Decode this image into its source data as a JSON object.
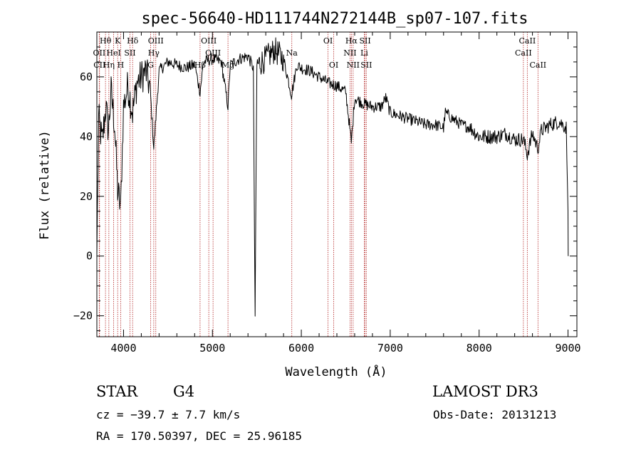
{
  "chart_data": {
    "type": "line",
    "title": "spec-56640-HD111744N272144B_sp07-107.fits",
    "xlabel": "Wavelength (Å)",
    "ylabel": "Flux (relative)",
    "xlim": [
      3700,
      9100
    ],
    "ylim": [
      -27,
      75
    ],
    "xticks": [
      4000,
      5000,
      6000,
      7000,
      8000,
      9000
    ],
    "yticks": [
      -20,
      0,
      20,
      40,
      60
    ],
    "spectrum_control_points": [
      [
        3700,
        0
      ],
      [
        3720,
        46
      ],
      [
        3760,
        38
      ],
      [
        3800,
        50
      ],
      [
        3830,
        42
      ],
      [
        3860,
        55
      ],
      [
        3900,
        44
      ],
      [
        3934,
        22
      ],
      [
        3968,
        16
      ],
      [
        4000,
        50
      ],
      [
        4050,
        57
      ],
      [
        4102,
        48
      ],
      [
        4150,
        58
      ],
      [
        4200,
        60
      ],
      [
        4250,
        62
      ],
      [
        4300,
        56
      ],
      [
        4340,
        36
      ],
      [
        4400,
        62
      ],
      [
        4500,
        65
      ],
      [
        4600,
        64
      ],
      [
        4700,
        63
      ],
      [
        4800,
        64
      ],
      [
        4861,
        55
      ],
      [
        4900,
        65
      ],
      [
        5000,
        66
      ],
      [
        5100,
        65
      ],
      [
        5175,
        50
      ],
      [
        5200,
        64
      ],
      [
        5300,
        66
      ],
      [
        5400,
        67
      ],
      [
        5460,
        63
      ],
      [
        5480,
        -20
      ],
      [
        5500,
        64
      ],
      [
        5600,
        66
      ],
      [
        5700,
        69
      ],
      [
        5800,
        66
      ],
      [
        5890,
        54
      ],
      [
        5950,
        64
      ],
      [
        6000,
        63
      ],
      [
        6100,
        62
      ],
      [
        6200,
        60
      ],
      [
        6300,
        58
      ],
      [
        6400,
        57
      ],
      [
        6500,
        55
      ],
      [
        6563,
        38
      ],
      [
        6600,
        53
      ],
      [
        6700,
        51
      ],
      [
        6800,
        50
      ],
      [
        6900,
        50
      ],
      [
        6950,
        53
      ],
      [
        7000,
        48
      ],
      [
        7100,
        47
      ],
      [
        7200,
        46
      ],
      [
        7300,
        45
      ],
      [
        7400,
        44
      ],
      [
        7500,
        44
      ],
      [
        7600,
        43
      ],
      [
        7620,
        48
      ],
      [
        7700,
        46
      ],
      [
        7800,
        44
      ],
      [
        7900,
        43
      ],
      [
        8000,
        40
      ],
      [
        8100,
        40
      ],
      [
        8200,
        40
      ],
      [
        8300,
        41
      ],
      [
        8400,
        39
      ],
      [
        8500,
        39
      ],
      [
        8542,
        34
      ],
      [
        8600,
        41
      ],
      [
        8662,
        36
      ],
      [
        8700,
        42
      ],
      [
        8800,
        44
      ],
      [
        8900,
        45
      ],
      [
        8980,
        43
      ],
      [
        9000,
        15
      ],
      [
        9002,
        0
      ]
    ],
    "lines": [
      {
        "name": "Hθ",
        "wavelength": 3797,
        "row": 1
      },
      {
        "name": "OII",
        "wavelength": 3727,
        "row": 2
      },
      {
        "name": "CII",
        "wavelength": 3730,
        "row": 3
      },
      {
        "name": "Hη",
        "wavelength": 3835,
        "row": 3
      },
      {
        "name": "K",
        "wavelength": 3934,
        "row": 1
      },
      {
        "name": "HeI",
        "wavelength": 3889,
        "row": 2
      },
      {
        "name": "H",
        "wavelength": 3968,
        "row": 3
      },
      {
        "name": "Hδ",
        "wavelength": 4102,
        "row": 1
      },
      {
        "name": "SII",
        "wavelength": 4072,
        "row": 2
      },
      {
        "name": "OIII",
        "wavelength": 4363,
        "row": 1
      },
      {
        "name": "Hγ",
        "wavelength": 4340,
        "row": 2
      },
      {
        "name": "G",
        "wavelength": 4305,
        "row": 3
      },
      {
        "name": "OIII",
        "wavelength": 4959,
        "row": 1
      },
      {
        "name": "OIII",
        "wavelength": 5007,
        "row": 2
      },
      {
        "name": "Hβ",
        "wavelength": 4861,
        "row": 3
      },
      {
        "name": "Mg",
        "wavelength": 5175,
        "row": 3
      },
      {
        "name": "Na",
        "wavelength": 5893,
        "row": 2
      },
      {
        "name": "OI",
        "wavelength": 6300,
        "row": 1
      },
      {
        "name": "OI",
        "wavelength": 6364,
        "row": 3
      },
      {
        "name": "Hα",
        "wavelength": 6563,
        "row": 1
      },
      {
        "name": "NII",
        "wavelength": 6548,
        "row": 2
      },
      {
        "name": "NII",
        "wavelength": 6583,
        "row": 3
      },
      {
        "name": "SII",
        "wavelength": 6717,
        "row": 1
      },
      {
        "name": "Li",
        "wavelength": 6708,
        "row": 2
      },
      {
        "name": "SII",
        "wavelength": 6731,
        "row": 3
      },
      {
        "name": "CaII",
        "wavelength": 8542,
        "row": 1
      },
      {
        "name": "CaII",
        "wavelength": 8498,
        "row": 2
      },
      {
        "name": "CaII",
        "wavelength": 8662,
        "row": 3
      }
    ],
    "colors": {
      "line_marker": "#b22222",
      "spectrum": "#000000",
      "axes": "#000000"
    }
  },
  "info": {
    "class": "STAR",
    "subclass": "G4",
    "survey": "LAMOST DR3",
    "cz": "cz = −39.7 ± 7.7 km/s",
    "obs_date": "Obs-Date: 20131213",
    "coords": "RA = 170.50397, DEC =  25.96185"
  }
}
